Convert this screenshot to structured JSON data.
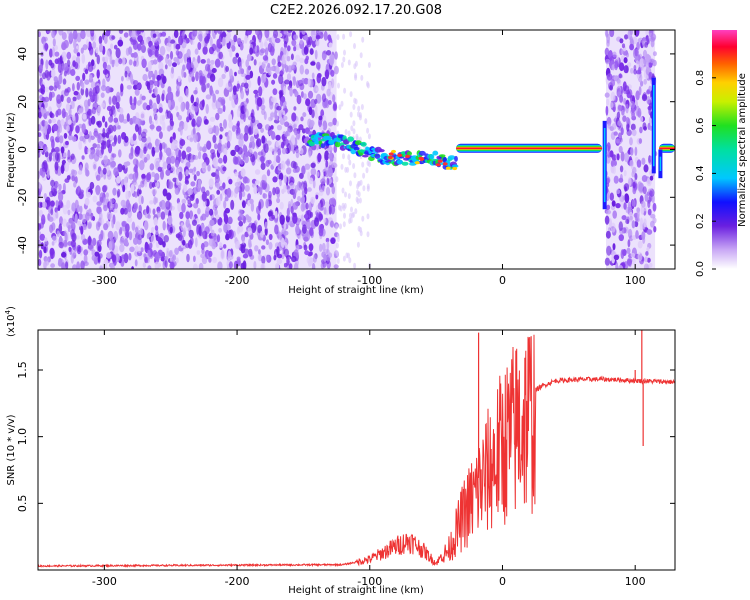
{
  "title": "C2E2.2026.092.17.20.G08",
  "chart_data": [
    {
      "type": "heatmap",
      "xlabel": "Height of straight line (km)",
      "ylabel": "Frequency (Hz)",
      "xlim": [
        -350,
        130
      ],
      "ylim": [
        -50,
        50
      ],
      "xticks": [
        -300,
        -200,
        -100,
        0,
        100
      ],
      "yticks": [
        -40,
        -20,
        0,
        20,
        40
      ],
      "colorbar": {
        "label": "Normalized spectral amplitude",
        "range": [
          0,
          1
        ],
        "ticks": [
          "0.0",
          "0.2",
          "0.4",
          "0.6",
          "0.8"
        ]
      },
      "regions": [
        {
          "kind": "noise",
          "x": [
            -350,
            -125
          ],
          "y": [
            -50,
            50
          ]
        },
        {
          "kind": "noise",
          "x": [
            78,
            115
          ],
          "y": [
            -50,
            50
          ]
        },
        {
          "kind": "signal-track",
          "x": [
            -145,
            -35
          ],
          "y": [
            4,
            -7
          ]
        },
        {
          "kind": "signal-line",
          "x": [
            -35,
            75
          ],
          "y": [
            0.5,
            0.5
          ]
        },
        {
          "kind": "signal-line",
          "x": [
            118,
            130
          ],
          "y": [
            0.5,
            0.5
          ]
        }
      ]
    },
    {
      "type": "line",
      "xlabel": "Height of straight line (km)",
      "ylabel": "SNR (10 * v/v)",
      "y_multiplier": "(x10",
      "y_multiplier_exp": "4",
      "y_multiplier_close": ")",
      "xlim": [
        -350,
        130
      ],
      "ylim": [
        0,
        1.8
      ],
      "xticks": [
        -300,
        -200,
        -100,
        0,
        100
      ],
      "yticks": [
        "0.5",
        "1.0",
        "1.5"
      ],
      "series_color": "#ee3333",
      "envelope": [
        {
          "x": -350,
          "y": 0.03
        },
        {
          "x": -120,
          "y": 0.04
        },
        {
          "x": -100,
          "y": 0.08
        },
        {
          "x": -80,
          "y": 0.18
        },
        {
          "x": -70,
          "y": 0.22
        },
        {
          "x": -60,
          "y": 0.15
        },
        {
          "x": -50,
          "y": 0.05
        },
        {
          "x": -40,
          "y": 0.18
        },
        {
          "x": -30,
          "y": 0.45
        },
        {
          "x": -20,
          "y": 0.65
        },
        {
          "x": -10,
          "y": 0.85
        },
        {
          "x": 0,
          "y": 1.05
        },
        {
          "x": 10,
          "y": 1.2
        },
        {
          "x": 20,
          "y": 1.32
        },
        {
          "x": 30,
          "y": 1.38
        },
        {
          "x": 40,
          "y": 1.42
        },
        {
          "x": 60,
          "y": 1.43
        },
        {
          "x": 80,
          "y": 1.43
        },
        {
          "x": 100,
          "y": 1.42
        },
        {
          "x": 130,
          "y": 1.41
        }
      ],
      "spikes": [
        {
          "x": -18,
          "y": 1.78
        },
        {
          "x": 100,
          "y": 1.5
        },
        {
          "x": 105,
          "y": 1.8
        },
        {
          "x": 106,
          "y": 0.93
        }
      ]
    }
  ]
}
